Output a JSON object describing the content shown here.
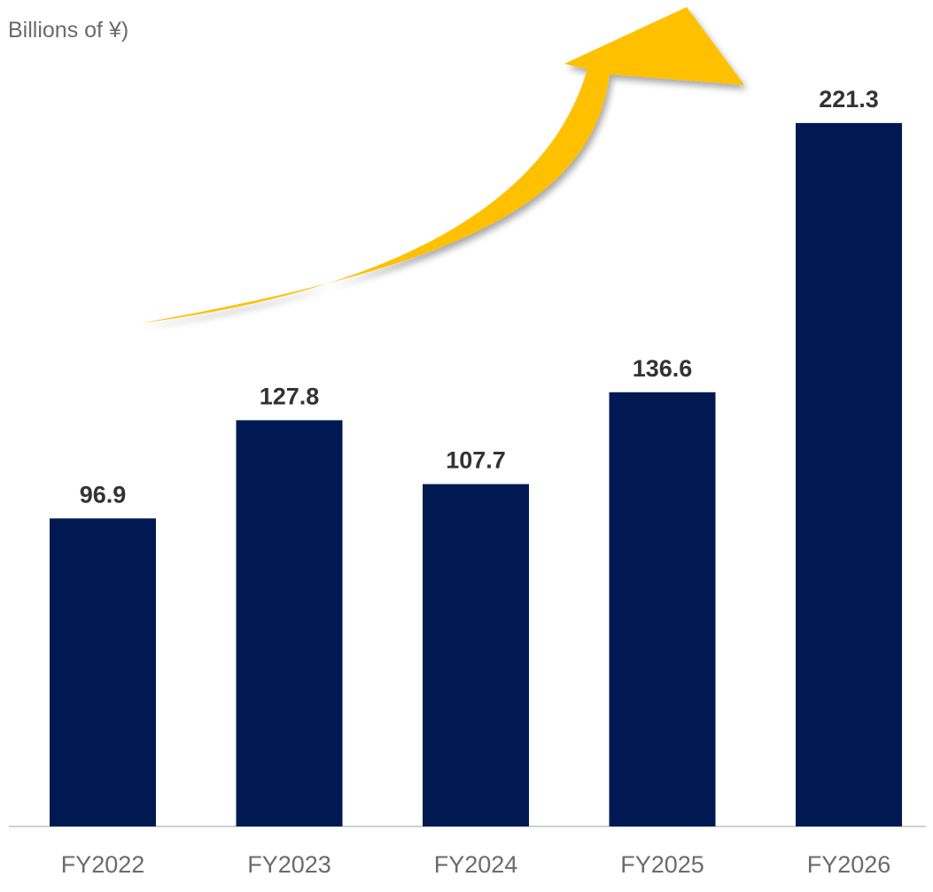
{
  "chart_data": {
    "type": "bar",
    "unit_label": "Billions of ¥)",
    "categories": [
      "FY2022",
      "FY2023",
      "FY2024",
      "FY2025",
      "FY2026"
    ],
    "values": [
      96.9,
      127.8,
      107.7,
      136.6,
      221.3
    ],
    "value_labels": [
      "96.9",
      "127.8",
      "107.7",
      "136.6",
      "221.3"
    ],
    "ylim": [
      0,
      260
    ],
    "grid": false,
    "legend": "none",
    "annotation": "upward-trend-arrow"
  },
  "colors": {
    "bar": "#001952",
    "value_label": "#333333",
    "category_label": "#6b6b6b",
    "baseline": "#d0d0d0",
    "arrow": "#ffc000",
    "arrow_shadow": "#000000"
  }
}
